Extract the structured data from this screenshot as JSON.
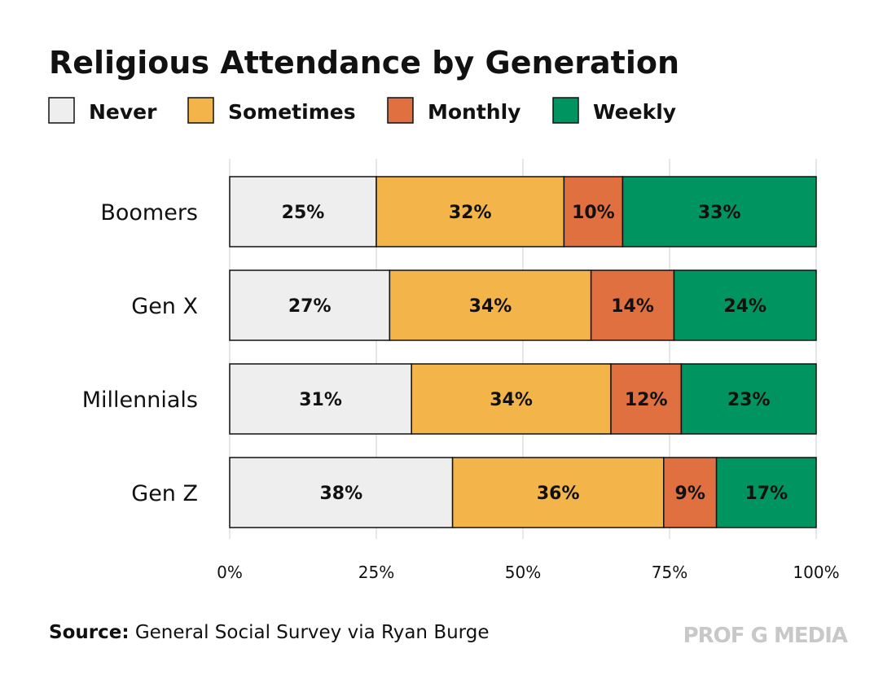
{
  "chart_data": {
    "type": "bar",
    "orientation": "horizontal-stacked",
    "title": "Religious Attendance by Generation",
    "categories": [
      "Boomers",
      "Gen X",
      "Millennials",
      "Gen Z"
    ],
    "series": [
      {
        "name": "Never",
        "color": "#eeeeee",
        "values": [
          25,
          27,
          31,
          38
        ]
      },
      {
        "name": "Sometimes",
        "color": "#f3b54a",
        "values": [
          32,
          34,
          34,
          36
        ]
      },
      {
        "name": "Monthly",
        "color": "#e07040",
        "values": [
          10,
          14,
          12,
          9
        ]
      },
      {
        "name": "Weekly",
        "color": "#009460",
        "values": [
          33,
          24,
          23,
          17
        ]
      }
    ],
    "xticks": [
      "0%",
      "25%",
      "50%",
      "75%",
      "100%"
    ],
    "xlim": [
      0,
      100
    ],
    "legend_placement": "top-left",
    "grid": true
  },
  "source_label": "Source:",
  "source_text": " General Social Survey via Ryan Burge",
  "brand": "PROF G MEDIA"
}
